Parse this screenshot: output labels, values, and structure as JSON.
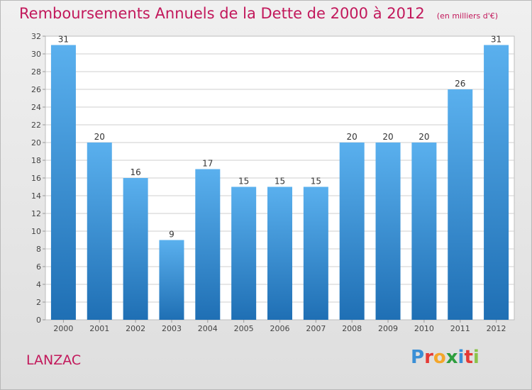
{
  "header": {
    "title": "Remboursements Annuels de la Dette de 2000 à 2012",
    "unit": "(en milliers d'€)"
  },
  "footer": {
    "town": "LANZAC",
    "logo": "Proxiti"
  },
  "colors": {
    "title": "#c2185b",
    "bar_top": "#5ab0ee",
    "bar_bottom": "#1f6fb4",
    "grid": "#cfcfcf"
  },
  "chart_data": {
    "type": "bar",
    "title": "Remboursements Annuels de la Dette de 2000 à 2012",
    "xlabel": "",
    "ylabel": "",
    "categories": [
      "2000",
      "2001",
      "2002",
      "2003",
      "2004",
      "2005",
      "2006",
      "2007",
      "2008",
      "2009",
      "2010",
      "2011",
      "2012"
    ],
    "values": [
      31,
      20,
      16,
      9,
      17,
      15,
      15,
      15,
      20,
      20,
      20,
      26,
      31
    ],
    "ylim": [
      0,
      32
    ],
    "yticks": [
      0,
      2,
      4,
      6,
      8,
      10,
      12,
      14,
      16,
      18,
      20,
      22,
      24,
      26,
      28,
      30,
      32
    ],
    "grid": true,
    "data_labels": true
  }
}
